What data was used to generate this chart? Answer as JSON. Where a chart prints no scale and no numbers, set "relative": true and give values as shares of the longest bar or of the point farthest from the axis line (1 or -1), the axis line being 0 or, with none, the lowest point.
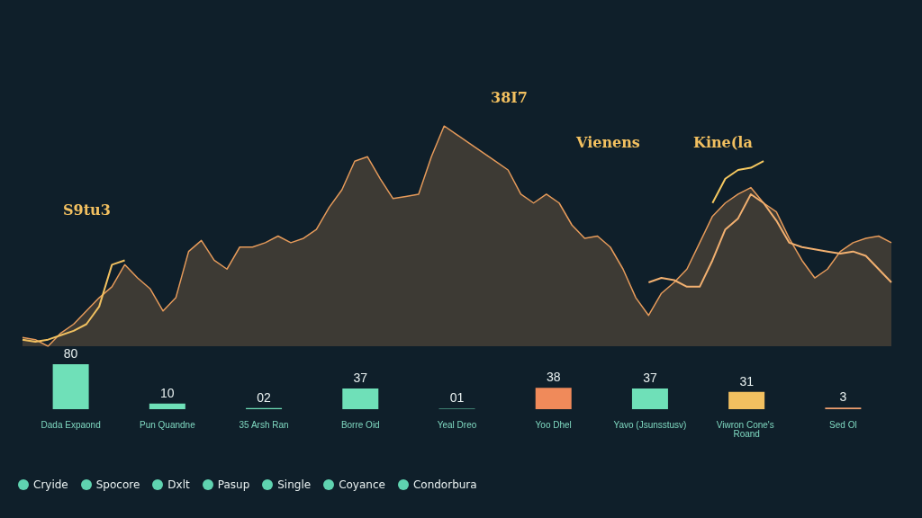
{
  "chart_data": [
    {
      "type": "area",
      "relative": true,
      "categories": [
        null,
        null,
        null,
        null,
        null,
        null,
        null,
        null,
        null,
        null,
        null,
        null,
        null,
        null,
        null,
        null,
        null,
        null,
        null,
        null,
        null,
        null,
        null,
        null,
        null,
        null,
        null,
        null,
        null,
        null,
        null,
        null,
        null,
        null,
        null,
        null,
        null,
        null,
        null,
        null,
        null,
        null,
        null,
        null,
        null,
        null,
        null,
        null,
        null,
        null,
        null,
        null,
        null,
        null,
        null,
        null,
        null,
        null,
        null,
        null,
        null,
        null,
        null,
        null,
        null,
        null,
        null,
        null,
        null
      ],
      "series": [
        {
          "color": "#e59a5a",
          "values": [
            0.04,
            0.03,
            0,
            0.06,
            0.1,
            0.16,
            0.22,
            0.27,
            0.37,
            0.31,
            0.26,
            0.16,
            0.22,
            0.43,
            0.48,
            0.39,
            0.35,
            0.45,
            0.45,
            0.47,
            0.5,
            0.47,
            0.49,
            0.53,
            0.63,
            0.71,
            0.84,
            0.86,
            0.76,
            0.67,
            0.68,
            0.69,
            0.86,
            1,
            0.96,
            0.92,
            0.88,
            0.84,
            0.8,
            0.69,
            0.65,
            0.69,
            0.65,
            0.55,
            0.49,
            0.5,
            0.45,
            0.35,
            0.22,
            0.14,
            0.24,
            0.29,
            0.35,
            0.47,
            0.59,
            0.65,
            0.69,
            0.72,
            0.65,
            0.61,
            0.49,
            0.39,
            0.31,
            0.35,
            0.43,
            0.47,
            0.49,
            0.5,
            0.47
          ]
        },
        {
          "type": "line",
          "color": "#f0c060",
          "values": [
            0.03,
            0.02,
            0.03,
            0.05,
            0.07,
            0.1,
            0.18,
            0.37,
            0.39,
            null,
            null,
            null,
            null,
            null,
            null,
            null,
            null,
            null,
            null,
            null,
            null,
            null,
            null,
            null,
            null,
            null,
            null,
            null,
            null,
            null,
            null,
            null,
            null,
            null,
            null,
            null,
            null,
            null,
            null,
            null,
            null,
            null,
            null,
            null,
            null,
            null,
            null,
            null,
            null,
            null,
            null,
            null,
            null,
            null,
            null,
            null,
            null,
            null,
            null,
            null,
            null,
            null,
            null,
            null,
            null,
            null,
            null,
            null,
            null
          ]
        },
        {
          "type": "line",
          "color": "#f2b070",
          "values": [
            null,
            null,
            null,
            null,
            null,
            null,
            null,
            null,
            null,
            null,
            null,
            null,
            null,
            null,
            null,
            null,
            null,
            null,
            null,
            null,
            null,
            null,
            null,
            null,
            null,
            null,
            null,
            null,
            null,
            null,
            null,
            null,
            null,
            null,
            null,
            null,
            null,
            null,
            null,
            null,
            null,
            null,
            null,
            null,
            null,
            null,
            null,
            null,
            null,
            0.29,
            0.31,
            0.3,
            0.27,
            0.27,
            0.39,
            0.53,
            0.58,
            0.69,
            0.65,
            0.57,
            0.47,
            0.45,
            0.44,
            0.43,
            0.42,
            0.43,
            0.41,
            0.35,
            0.29
          ]
        },
        {
          "type": "line",
          "color": "#f5c860",
          "values": [
            null,
            null,
            null,
            null,
            null,
            null,
            null,
            null,
            null,
            null,
            null,
            null,
            null,
            null,
            null,
            null,
            null,
            null,
            null,
            null,
            null,
            null,
            null,
            null,
            null,
            null,
            null,
            null,
            null,
            null,
            null,
            null,
            null,
            null,
            null,
            null,
            null,
            null,
            null,
            null,
            null,
            null,
            null,
            null,
            null,
            null,
            null,
            null,
            null,
            null,
            null,
            null,
            null,
            null,
            0.65,
            0.76,
            0.8,
            0.81,
            0.84,
            null,
            null,
            null,
            null,
            null,
            null,
            null,
            null,
            null,
            null
          ]
        }
      ],
      "annotations": [
        "S9tu3",
        "38I7",
        "Vienens",
        "Kine(la"
      ]
    },
    {
      "type": "bar",
      "categories": [
        "Dada Expaond",
        "Pun Quandne",
        "35 Arsh Ran",
        "Borre Oid",
        "Yeal Dreo",
        "Yoo Dhel",
        "Yavo (Jsunsstusv)",
        "Viwron Cone's Roand",
        "Sed Ol"
      ],
      "values": [
        80,
        10,
        2,
        37,
        1,
        38,
        37,
        31,
        3
      ],
      "colors": [
        "#6fe0b8",
        "#6fe0b8",
        "#6fe0b8",
        "#6fe0b8",
        "#6fe0b8",
        "#f08a5a",
        "#6fe0b8",
        "#f2c060",
        "#f0a070"
      ],
      "value_labels": [
        "80",
        "10",
        "02",
        "37",
        "01",
        "38",
        "37",
        "31",
        "3"
      ],
      "annotations": [
        "Cryide",
        "Spocore",
        "Dxlt",
        "Pasup",
        "Single",
        "Coyance",
        "Condorbura"
      ]
    }
  ]
}
